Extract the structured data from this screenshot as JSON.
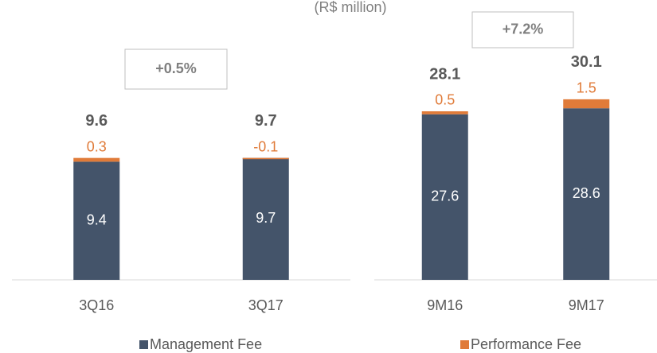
{
  "chart_data": [
    {
      "type": "bar",
      "stacked": true,
      "subtitle": "(R$ million)",
      "annotation": "+0.5%",
      "categories": [
        "3Q16",
        "3Q17"
      ],
      "series": [
        {
          "name": "Management Fee",
          "color": "#44546a",
          "values": [
            9.4,
            9.7
          ]
        },
        {
          "name": "Performance Fee",
          "color": "#e07b39",
          "values": [
            0.3,
            -0.1
          ]
        }
      ],
      "totals": [
        9.6,
        9.7
      ],
      "ylim": [
        0,
        21
      ]
    },
    {
      "type": "bar",
      "stacked": true,
      "annotation": "+7.2%",
      "categories": [
        "9M16",
        "9M17"
      ],
      "series": [
        {
          "color": "#44546a",
          "values": [
            27.6,
            28.6
          ]
        },
        {
          "color": "#e07b39",
          "values": [
            0.5,
            1.5
          ]
        }
      ],
      "totals": [
        28.1,
        30.1
      ],
      "ylim": [
        0,
        44
      ]
    }
  ]
}
